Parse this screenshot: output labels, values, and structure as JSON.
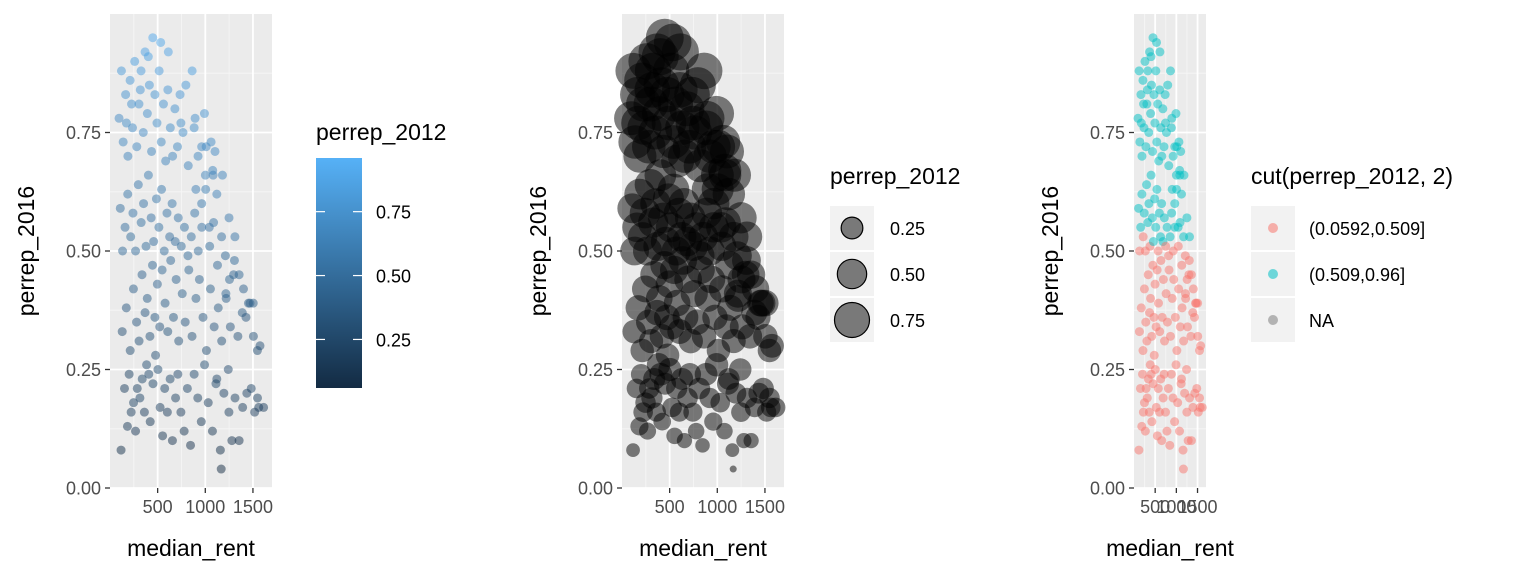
{
  "chart_data": [
    {
      "type": "scatter",
      "xlabel": "median_rent",
      "ylabel": "perrep_2016",
      "xlim": [
        0,
        1700
      ],
      "ylim": [
        0,
        1.0
      ],
      "xticks": [
        {
          "v": 500,
          "label": "500"
        },
        {
          "v": 1000,
          "label": "1000"
        },
        {
          "v": 1500,
          "label": "1500"
        }
      ],
      "yticks": [
        {
          "v": 0.0,
          "label": "0.00"
        },
        {
          "v": 0.25,
          "label": "0.25"
        },
        {
          "v": 0.5,
          "label": "0.50"
        },
        {
          "v": 0.75,
          "label": "0.75"
        }
      ],
      "aesthetic": "color-continuous",
      "legend": {
        "title": "perrep_2012",
        "kind": "colorbar",
        "range": [
          0.06,
          0.96
        ],
        "low_color": "#132B43",
        "high_color": "#56B1F7",
        "breaks": [
          {
            "v": 0.25,
            "label": "0.25"
          },
          {
            "v": 0.5,
            "label": "0.50"
          },
          {
            "v": 0.75,
            "label": "0.75"
          }
        ]
      },
      "grid": true,
      "point_alpha": 0.5
    },
    {
      "type": "scatter",
      "xlabel": "median_rent",
      "ylabel": "perrep_2016",
      "xlim": [
        0,
        1700
      ],
      "ylim": [
        0,
        1.0
      ],
      "xticks": [
        {
          "v": 500,
          "label": "500"
        },
        {
          "v": 1000,
          "label": "1000"
        },
        {
          "v": 1500,
          "label": "1500"
        }
      ],
      "yticks": [
        {
          "v": 0.0,
          "label": "0.00"
        },
        {
          "v": 0.25,
          "label": "0.25"
        },
        {
          "v": 0.5,
          "label": "0.50"
        },
        {
          "v": 0.75,
          "label": "0.75"
        }
      ],
      "aesthetic": "size",
      "legend": {
        "title": "perrep_2012",
        "kind": "size",
        "range": [
          0.06,
          0.96
        ],
        "entries": [
          {
            "v": 0.25,
            "label": "0.25"
          },
          {
            "v": 0.5,
            "label": "0.50"
          },
          {
            "v": 0.75,
            "label": "0.75"
          }
        ]
      },
      "grid": true,
      "point_color": "#000000",
      "point_alpha": 0.5
    },
    {
      "type": "scatter",
      "xlabel": "median_rent",
      "ylabel": "perrep_2016",
      "xlim": [
        0,
        1700
      ],
      "ylim": [
        0,
        1.0
      ],
      "xticks": [
        {
          "v": 500,
          "label": "500"
        },
        {
          "v": 1000,
          "label": "1000"
        },
        {
          "v": 1500,
          "label": "1500"
        }
      ],
      "yticks": [
        {
          "v": 0.0,
          "label": "0.00"
        },
        {
          "v": 0.25,
          "label": "0.25"
        },
        {
          "v": 0.5,
          "label": "0.50"
        },
        {
          "v": 0.75,
          "label": "0.75"
        }
      ],
      "aesthetic": "color-discrete",
      "legend": {
        "title": "cut(perrep_2012, 2)",
        "kind": "discrete",
        "entries": [
          {
            "label": "(0.0592,0.509]",
            "color": "#F8766D"
          },
          {
            "label": "(0.509,0.96]",
            "color": "#00BFC4"
          },
          {
            "label": "NA",
            "color": "#7F7F7F"
          }
        ]
      },
      "grid": true,
      "point_alpha": 0.5
    }
  ],
  "points": [
    [
      116,
      0.08,
      0.1
    ],
    [
      152,
      0.21,
      0.2
    ],
    [
      183,
      0.13,
      0.17
    ],
    [
      201,
      0.24,
      0.22
    ],
    [
      222,
      0.16,
      0.2
    ],
    [
      247,
      0.18,
      0.22
    ],
    [
      268,
      0.12,
      0.15
    ],
    [
      286,
      0.21,
      0.22
    ],
    [
      314,
      0.19,
      0.24
    ],
    [
      338,
      0.23,
      0.26
    ],
    [
      361,
      0.16,
      0.19
    ],
    [
      384,
      0.26,
      0.3
    ],
    [
      407,
      0.24,
      0.28
    ],
    [
      422,
      0.14,
      0.16
    ],
    [
      451,
      0.22,
      0.26
    ],
    [
      478,
      0.28,
      0.3
    ],
    [
      503,
      0.25,
      0.29
    ],
    [
      526,
      0.17,
      0.2
    ],
    [
      552,
      0.11,
      0.14
    ],
    [
      574,
      0.21,
      0.24
    ],
    [
      602,
      0.16,
      0.19
    ],
    [
      631,
      0.23,
      0.26
    ],
    [
      655,
      0.1,
      0.12
    ],
    [
      688,
      0.19,
      0.22
    ],
    [
      712,
      0.24,
      0.27
    ],
    [
      744,
      0.16,
      0.19
    ],
    [
      778,
      0.12,
      0.14
    ],
    [
      812,
      0.21,
      0.25
    ],
    [
      845,
      0.09,
      0.11
    ],
    [
      883,
      0.24,
      0.28
    ],
    [
      921,
      0.19,
      0.22
    ],
    [
      958,
      0.14,
      0.17
    ],
    [
      992,
      0.26,
      0.3
    ],
    [
      1031,
      0.18,
      0.2
    ],
    [
      1075,
      0.12,
      0.14
    ],
    [
      1112,
      0.22,
      0.26
    ],
    [
      1158,
      0.08,
      0.1
    ],
    [
      1167,
      0.04,
      0.06
    ],
    [
      1195,
      0.2,
      0.23
    ],
    [
      1248,
      0.16,
      0.2
    ],
    [
      1279,
      0.1,
      0.12
    ],
    [
      1312,
      0.19,
      0.22
    ],
    [
      1355,
      0.1,
      0.12
    ],
    [
      1392,
      0.17,
      0.2
    ],
    [
      1436,
      0.2,
      0.23
    ],
    [
      1482,
      0.21,
      0.24
    ],
    [
      1518,
      0.16,
      0.19
    ],
    [
      1561,
      0.17,
      0.2
    ],
    [
      1612,
      0.17,
      0.2
    ],
    [
      1548,
      0.19,
      0.22
    ],
    [
      128,
      0.33,
      0.3
    ],
    [
      171,
      0.38,
      0.36
    ],
    [
      212,
      0.29,
      0.3
    ],
    [
      246,
      0.42,
      0.41
    ],
    [
      279,
      0.35,
      0.35
    ],
    [
      305,
      0.31,
      0.32
    ],
    [
      336,
      0.45,
      0.43
    ],
    [
      368,
      0.37,
      0.36
    ],
    [
      391,
      0.4,
      0.4
    ],
    [
      419,
      0.32,
      0.33
    ],
    [
      446,
      0.47,
      0.46
    ],
    [
      471,
      0.36,
      0.37
    ],
    [
      497,
      0.43,
      0.43
    ],
    [
      522,
      0.34,
      0.35
    ],
    [
      547,
      0.46,
      0.46
    ],
    [
      578,
      0.39,
      0.4
    ],
    [
      606,
      0.33,
      0.34
    ],
    [
      637,
      0.48,
      0.47
    ],
    [
      666,
      0.36,
      0.37
    ],
    [
      694,
      0.44,
      0.44
    ],
    [
      721,
      0.31,
      0.33
    ],
    [
      758,
      0.41,
      0.42
    ],
    [
      789,
      0.35,
      0.36
    ],
    [
      827,
      0.46,
      0.45
    ],
    [
      861,
      0.32,
      0.33
    ],
    [
      902,
      0.4,
      0.41
    ],
    [
      938,
      0.44,
      0.44
    ],
    [
      976,
      0.36,
      0.36
    ],
    [
      1012,
      0.29,
      0.3
    ],
    [
      1054,
      0.42,
      0.42
    ],
    [
      1093,
      0.34,
      0.35
    ],
    [
      1136,
      0.38,
      0.38
    ],
    [
      1172,
      0.31,
      0.32
    ],
    [
      1219,
      0.4,
      0.41
    ],
    [
      1263,
      0.34,
      0.35
    ],
    [
      1297,
      0.45,
      0.44
    ],
    [
      1342,
      0.32,
      0.33
    ],
    [
      1388,
      0.37,
      0.38
    ],
    [
      1427,
      0.36,
      0.35
    ],
    [
      1469,
      0.39,
      0.41
    ],
    [
      1505,
      0.32,
      0.33
    ],
    [
      1547,
      0.29,
      0.3
    ],
    [
      1574,
      0.3,
      0.31
    ],
    [
      1241,
      0.25,
      0.27
    ],
    [
      1121,
      0.23,
      0.25
    ],
    [
      108,
      0.59,
      0.52
    ],
    [
      132,
      0.5,
      0.48
    ],
    [
      158,
      0.55,
      0.51
    ],
    [
      186,
      0.62,
      0.56
    ],
    [
      217,
      0.53,
      0.5
    ],
    [
      241,
      0.58,
      0.55
    ],
    [
      268,
      0.5,
      0.49
    ],
    [
      297,
      0.64,
      0.58
    ],
    [
      327,
      0.56,
      0.53
    ],
    [
      352,
      0.6,
      0.55
    ],
    [
      378,
      0.51,
      0.5
    ],
    [
      403,
      0.66,
      0.6
    ],
    [
      432,
      0.57,
      0.54
    ],
    [
      458,
      0.52,
      0.51
    ],
    [
      487,
      0.61,
      0.57
    ],
    [
      513,
      0.55,
      0.53
    ],
    [
      541,
      0.63,
      0.59
    ],
    [
      569,
      0.5,
      0.49
    ],
    [
      598,
      0.58,
      0.55
    ],
    [
      626,
      0.53,
      0.51
    ],
    [
      652,
      0.6,
      0.57
    ],
    [
      684,
      0.52,
      0.51
    ],
    [
      716,
      0.57,
      0.55
    ],
    [
      748,
      0.51,
      0.5
    ],
    [
      781,
      0.55,
      0.53
    ],
    [
      818,
      0.49,
      0.49
    ],
    [
      853,
      0.53,
      0.52
    ],
    [
      889,
      0.58,
      0.56
    ],
    [
      926,
      0.5,
      0.49
    ],
    [
      963,
      0.55,
      0.54
    ],
    [
      1004,
      0.63,
      0.61
    ],
    [
      1046,
      0.51,
      0.5
    ],
    [
      1087,
      0.56,
      0.55
    ],
    [
      1128,
      0.47,
      0.47
    ],
    [
      1171,
      0.53,
      0.52
    ],
    [
      1211,
      0.49,
      0.48
    ],
    [
      1254,
      0.44,
      0.45
    ],
    [
      1306,
      0.48,
      0.48
    ],
    [
      1355,
      0.45,
      0.46
    ],
    [
      1401,
      0.42,
      0.43
    ],
    [
      1453,
      0.39,
      0.4
    ],
    [
      1503,
      0.39,
      0.4
    ],
    [
      1042,
      0.55,
      0.54
    ],
    [
      1082,
      0.66,
      0.63
    ],
    [
      1001,
      0.66,
      0.65
    ],
    [
      962,
      0.6,
      0.59
    ],
    [
      901,
      0.63,
      0.62
    ],
    [
      95,
      0.78,
      0.7
    ],
    [
      138,
      0.73,
      0.68
    ],
    [
      164,
      0.83,
      0.76
    ],
    [
      188,
      0.7,
      0.66
    ],
    [
      211,
      0.86,
      0.79
    ],
    [
      236,
      0.76,
      0.71
    ],
    [
      259,
      0.9,
      0.83
    ],
    [
      281,
      0.72,
      0.68
    ],
    [
      304,
      0.81,
      0.75
    ],
    [
      326,
      0.88,
      0.82
    ],
    [
      349,
      0.75,
      0.7
    ],
    [
      368,
      0.92,
      0.86
    ],
    [
      392,
      0.79,
      0.74
    ],
    [
      413,
      0.85,
      0.79
    ],
    [
      436,
      0.71,
      0.67
    ],
    [
      449,
      0.95,
      0.9
    ],
    [
      471,
      0.83,
      0.77
    ],
    [
      493,
      0.77,
      0.73
    ],
    [
      516,
      0.88,
      0.82
    ],
    [
      538,
      0.73,
      0.69
    ],
    [
      561,
      0.81,
      0.76
    ],
    [
      584,
      0.69,
      0.66
    ],
    [
      607,
      0.84,
      0.78
    ],
    [
      633,
      0.76,
      0.72
    ],
    [
      657,
      0.7,
      0.67
    ],
    [
      681,
      0.8,
      0.75
    ],
    [
      708,
      0.72,
      0.69
    ],
    [
      735,
      0.83,
      0.78
    ],
    [
      766,
      0.75,
      0.72
    ],
    [
      796,
      0.85,
      0.8
    ],
    [
      821,
      0.68,
      0.66
    ],
    [
      862,
      0.88,
      0.83
    ],
    [
      893,
      0.78,
      0.74
    ],
    [
      924,
      0.7,
      0.68
    ],
    [
      962,
      0.72,
      0.7
    ],
    [
      991,
      0.79,
      0.76
    ],
    [
      1009,
      0.72,
      0.7
    ],
    [
      1061,
      0.73,
      0.71
    ],
    [
      1102,
      0.71,
      0.7
    ],
    [
      1078,
      0.67,
      0.67
    ],
    [
      883,
      0.76,
      0.73
    ],
    [
      744,
      0.77,
      0.73
    ],
    [
      612,
      0.92,
      0.86
    ],
    [
      532,
      0.94,
      0.88
    ],
    [
      402,
      0.91,
      0.85
    ],
    [
      318,
      0.84,
      0.78
    ],
    [
      226,
      0.81,
      0.75
    ],
    [
      172,
      0.77,
      0.72
    ],
    [
      120,
      0.88,
      0.8
    ],
    [
      1180,
      0.66,
      0.66
    ],
    [
      1121,
      0.62,
      0.63
    ],
    [
      1249,
      0.57,
      0.58
    ],
    [
      1311,
      0.53,
      0.55
    ],
    [
      1216,
      0.41,
      0.45
    ]
  ]
}
